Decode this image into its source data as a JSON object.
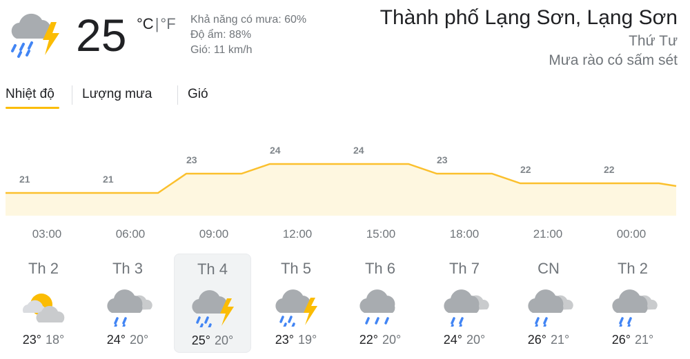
{
  "current": {
    "icon": "rain-thunder-icon",
    "temperature": "25",
    "unit_c": "°C",
    "unit_sep": "|",
    "unit_f": "°F",
    "precip": "Khả năng có mưa: 60%",
    "humidity": "Độ ẩm: 88%",
    "wind": "Gió: 11 km/h"
  },
  "location": {
    "city": "Thành phố Lạng Sơn, Lạng Sơn",
    "day": "Thứ Tư",
    "condition": "Mưa rào có sấm sét"
  },
  "tabs": [
    {
      "label": "Nhiệt độ",
      "active": true
    },
    {
      "label": "Lượng mưa",
      "active": false
    },
    {
      "label": "Gió",
      "active": false
    }
  ],
  "chart_data": {
    "type": "area",
    "x": [
      "03:00",
      "06:00",
      "09:00",
      "12:00",
      "15:00",
      "18:00",
      "21:00",
      "00:00"
    ],
    "values": [
      21,
      21,
      23,
      24,
      24,
      23,
      22,
      22
    ],
    "data_labels": [
      "21",
      "21",
      "23",
      "24",
      "24",
      "23",
      "22",
      "22"
    ],
    "line_color": "#fbc02d",
    "fill_color": "#fef7e0"
  },
  "days": [
    {
      "name": "Th 2",
      "icon": "partly-cloudy-icon",
      "hi": "23°",
      "lo": "18°",
      "selected": false
    },
    {
      "name": "Th 3",
      "icon": "cloud-rain-icon",
      "hi": "24°",
      "lo": "20°",
      "selected": false
    },
    {
      "name": "Th 4",
      "icon": "rain-thunder-icon",
      "hi": "25°",
      "lo": "20°",
      "selected": true
    },
    {
      "name": "Th 5",
      "icon": "rain-thunder-icon",
      "hi": "23°",
      "lo": "19°",
      "selected": false
    },
    {
      "name": "Th 6",
      "icon": "heavy-rain-icon",
      "hi": "22°",
      "lo": "20°",
      "selected": false
    },
    {
      "name": "Th 7",
      "icon": "cloud-rain-icon",
      "hi": "24°",
      "lo": "20°",
      "selected": false
    },
    {
      "name": "CN",
      "icon": "cloud-rain-icon",
      "hi": "26°",
      "lo": "21°",
      "selected": false
    },
    {
      "name": "Th 2",
      "icon": "cloud-rain-icon",
      "hi": "26°",
      "lo": "21°",
      "selected": false
    }
  ]
}
